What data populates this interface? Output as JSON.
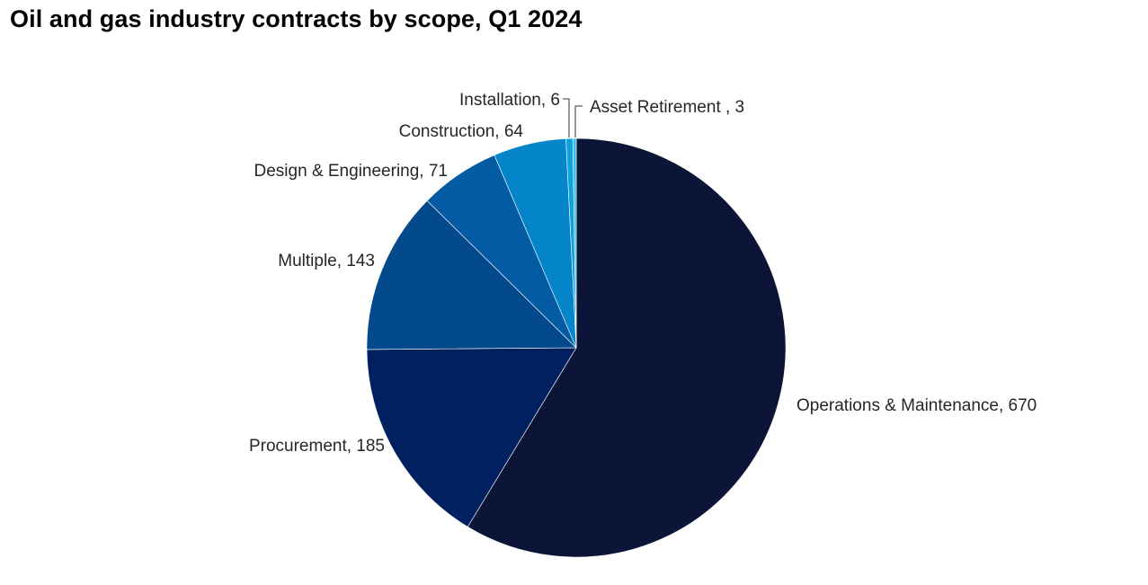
{
  "chart_data": {
    "type": "pie",
    "title": "Oil and gas industry contracts by scope, Q1 2024",
    "slices": [
      {
        "label": "Operations & Maintenance",
        "value": 670,
        "display": "Operations & Maintenance, 670",
        "color": "#0c1538"
      },
      {
        "label": "Procurement",
        "value": 185,
        "display": "Procurement, 185",
        "color": "#002060"
      },
      {
        "label": "Multiple",
        "value": 143,
        "display": "Multiple, 143",
        "color": "#024a8c"
      },
      {
        "label": "Design & Engineering",
        "value": 71,
        "display": "Design & Engineering, 71",
        "color": "#035ca3"
      },
      {
        "label": "Construction",
        "value": 64,
        "display": "Construction, 64",
        "color": "#0484c9"
      },
      {
        "label": "Installation",
        "value": 6,
        "display": "Installation, 6",
        "color": "#0ea2df"
      },
      {
        "label": "Asset Retirement",
        "value": 3,
        "display": "Asset Retirement , 3",
        "color": "#36bff0"
      }
    ],
    "start": "12 o'clock",
    "direction": "clockwise",
    "legend": "none",
    "data_labels": "outside"
  }
}
